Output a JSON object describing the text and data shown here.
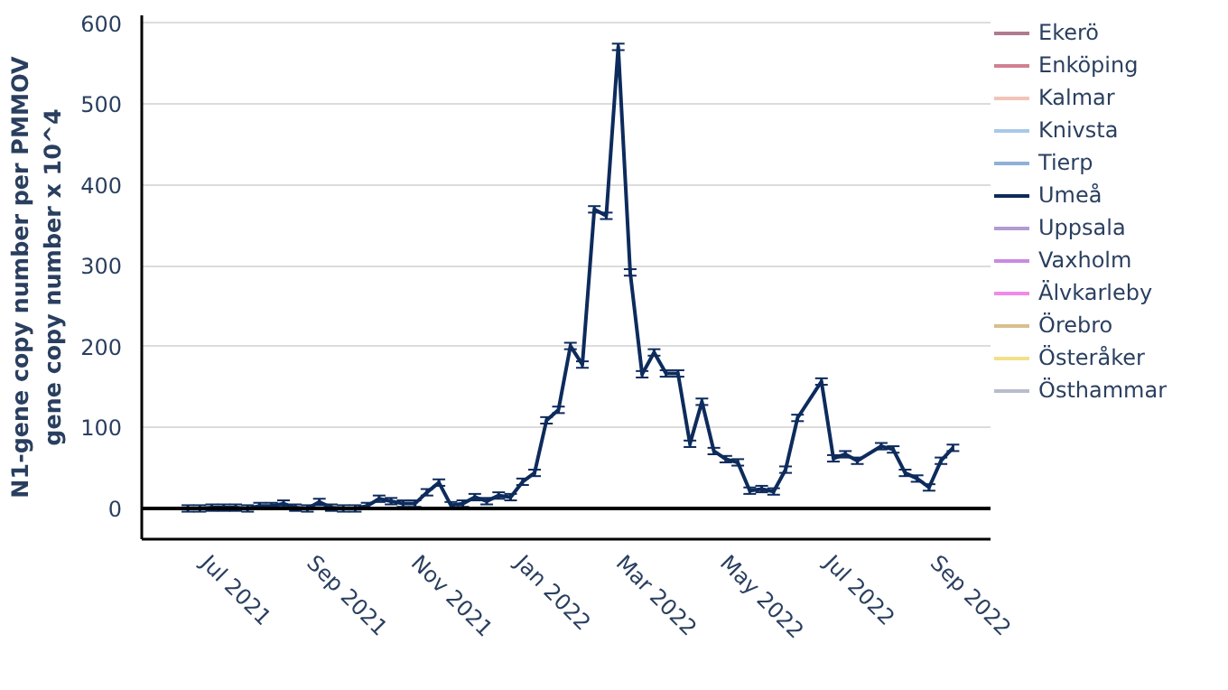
{
  "chart_data": {
    "type": "line",
    "ylabel": "N1-gene copy number per PMMOV\ngene copy number x 10^4",
    "x": [
      "2021-06-21",
      "2021-06-28",
      "2021-07-05",
      "2021-07-12",
      "2021-07-19",
      "2021-07-26",
      "2021-08-02",
      "2021-08-09",
      "2021-08-16",
      "2021-08-23",
      "2021-08-30",
      "2021-09-06",
      "2021-09-13",
      "2021-09-20",
      "2021-09-27",
      "2021-10-04",
      "2021-10-11",
      "2021-10-18",
      "2021-10-25",
      "2021-11-01",
      "2021-11-08",
      "2021-11-15",
      "2021-11-22",
      "2021-11-29",
      "2021-12-06",
      "2021-12-13",
      "2021-12-20",
      "2021-12-27",
      "2022-01-03",
      "2022-01-10",
      "2022-01-17",
      "2022-01-24",
      "2022-01-31",
      "2022-02-07",
      "2022-02-14",
      "2022-02-21",
      "2022-02-28",
      "2022-03-07",
      "2022-03-14",
      "2022-03-21",
      "2022-03-28",
      "2022-04-04",
      "2022-04-11",
      "2022-04-18",
      "2022-04-25",
      "2022-05-02",
      "2022-05-09",
      "2022-05-16",
      "2022-05-23",
      "2022-05-30",
      "2022-06-06",
      "2022-06-13",
      "2022-06-20",
      "2022-06-27",
      "2022-07-04",
      "2022-07-11",
      "2022-07-18",
      "2022-07-25",
      "2022-08-01",
      "2022-08-08",
      "2022-08-15",
      "2022-08-22",
      "2022-08-29",
      "2022-09-05",
      "2022-09-12"
    ],
    "series": [
      {
        "name": "Ekerö",
        "color": "#b07a8f",
        "values": [
          null,
          null,
          null,
          null,
          null,
          null,
          null,
          null,
          null,
          null,
          null,
          null,
          null,
          null,
          null,
          null,
          null,
          null,
          null,
          null,
          null,
          null,
          null,
          null,
          null,
          null,
          null,
          null,
          null,
          null,
          null,
          null,
          null,
          null,
          null,
          null,
          null,
          null,
          null,
          null,
          null,
          null,
          null,
          null,
          null,
          null,
          null,
          null,
          null,
          null,
          null,
          null,
          null,
          null,
          null,
          null,
          null,
          null,
          null,
          null,
          null,
          null,
          null,
          null,
          null
        ]
      },
      {
        "name": "Enköping",
        "color": "#d0808f",
        "values": [
          null,
          null,
          null,
          null,
          null,
          null,
          null,
          null,
          null,
          null,
          null,
          null,
          null,
          null,
          null,
          null,
          null,
          null,
          null,
          null,
          null,
          null,
          null,
          null,
          null,
          null,
          null,
          null,
          null,
          null,
          null,
          null,
          null,
          null,
          null,
          null,
          null,
          null,
          null,
          null,
          null,
          null,
          null,
          null,
          null,
          null,
          null,
          null,
          null,
          null,
          null,
          null,
          null,
          null,
          null,
          null,
          null,
          null,
          null,
          null,
          null,
          null,
          null,
          null,
          null
        ]
      },
      {
        "name": "Kalmar",
        "color": "#f2c4b8",
        "values": [
          null,
          null,
          null,
          null,
          null,
          null,
          null,
          null,
          null,
          null,
          null,
          null,
          null,
          null,
          null,
          null,
          null,
          null,
          null,
          null,
          null,
          null,
          null,
          null,
          null,
          null,
          null,
          null,
          null,
          null,
          null,
          null,
          null,
          null,
          null,
          null,
          null,
          null,
          null,
          null,
          null,
          null,
          null,
          null,
          null,
          null,
          null,
          null,
          null,
          null,
          null,
          null,
          null,
          null,
          null,
          null,
          null,
          null,
          null,
          null,
          null,
          null,
          null,
          null,
          null
        ]
      },
      {
        "name": "Knivsta",
        "color": "#a9c8e8",
        "values": [
          null,
          null,
          null,
          null,
          null,
          null,
          null,
          null,
          null,
          null,
          null,
          null,
          null,
          null,
          null,
          null,
          null,
          null,
          null,
          null,
          null,
          null,
          null,
          null,
          null,
          null,
          null,
          null,
          null,
          null,
          null,
          null,
          null,
          null,
          null,
          null,
          null,
          null,
          null,
          null,
          null,
          null,
          null,
          null,
          null,
          null,
          null,
          null,
          null,
          null,
          null,
          null,
          null,
          null,
          null,
          null,
          null,
          null,
          null,
          null,
          null,
          null,
          null,
          null,
          null
        ]
      },
      {
        "name": "Tierp",
        "color": "#8fb0d8",
        "values": [
          null,
          null,
          null,
          null,
          null,
          null,
          null,
          null,
          null,
          null,
          null,
          null,
          null,
          null,
          null,
          null,
          null,
          null,
          null,
          null,
          null,
          null,
          null,
          null,
          null,
          null,
          null,
          null,
          null,
          null,
          null,
          null,
          null,
          null,
          null,
          null,
          null,
          null,
          null,
          null,
          null,
          null,
          null,
          null,
          null,
          null,
          null,
          null,
          null,
          null,
          null,
          null,
          null,
          null,
          null,
          null,
          null,
          null,
          null,
          null,
          null,
          null,
          null,
          null,
          null
        ]
      },
      {
        "name": "Umeå",
        "color": "#0d2b5c",
        "values": [
          0,
          0,
          1,
          1,
          1,
          0,
          3,
          3,
          6,
          1,
          0,
          8,
          1,
          0,
          0,
          3,
          12,
          9,
          6,
          6,
          20,
          32,
          4,
          6,
          14,
          9,
          16,
          14,
          33,
          44,
          109,
          122,
          201,
          178,
          370,
          362,
          571,
          292,
          166,
          193,
          167,
          167,
          80,
          132,
          71,
          61,
          57,
          22,
          24,
          21,
          48,
          112,
          null,
          157,
          62,
          67,
          59,
          null,
          77,
          73,
          44,
          37,
          26,
          59,
          75
        ],
        "errors": [
          4,
          4,
          4,
          4,
          4,
          4,
          4,
          4,
          4,
          4,
          4,
          4,
          4,
          4,
          4,
          4,
          4,
          4,
          4,
          4,
          4,
          4,
          4,
          4,
          4,
          4,
          4,
          4,
          4,
          4,
          4,
          4,
          4,
          4,
          4,
          4,
          4,
          4,
          4,
          4,
          4,
          4,
          4,
          4,
          4,
          4,
          4,
          4,
          4,
          4,
          4,
          4,
          null,
          4,
          4,
          4,
          4,
          null,
          4,
          4,
          4,
          4,
          4,
          4,
          4
        ]
      },
      {
        "name": "Uppsala",
        "color": "#b29ad4",
        "values": [
          null,
          null,
          null,
          null,
          null,
          null,
          null,
          null,
          null,
          null,
          null,
          null,
          null,
          null,
          null,
          null,
          null,
          null,
          null,
          null,
          null,
          null,
          null,
          null,
          null,
          null,
          null,
          null,
          null,
          null,
          null,
          null,
          null,
          null,
          null,
          null,
          null,
          null,
          null,
          null,
          null,
          null,
          null,
          null,
          null,
          null,
          null,
          null,
          null,
          null,
          null,
          null,
          null,
          null,
          null,
          null,
          null,
          null,
          null,
          null,
          null,
          null,
          null,
          null,
          null
        ]
      },
      {
        "name": "Vaxholm",
        "color": "#c98ae0",
        "values": [
          null,
          null,
          null,
          null,
          null,
          null,
          null,
          null,
          null,
          null,
          null,
          null,
          null,
          null,
          null,
          null,
          null,
          null,
          null,
          null,
          null,
          null,
          null,
          null,
          null,
          null,
          null,
          null,
          null,
          null,
          null,
          null,
          null,
          null,
          null,
          null,
          null,
          null,
          null,
          null,
          null,
          null,
          null,
          null,
          null,
          null,
          null,
          null,
          null,
          null,
          null,
          null,
          null,
          null,
          null,
          null,
          null,
          null,
          null,
          null,
          null,
          null,
          null,
          null,
          null
        ]
      },
      {
        "name": "Älvkarleby",
        "color": "#f08ae8",
        "values": [
          null,
          null,
          null,
          null,
          null,
          null,
          null,
          null,
          null,
          null,
          null,
          null,
          null,
          null,
          null,
          null,
          null,
          null,
          null,
          null,
          null,
          null,
          null,
          null,
          null,
          null,
          null,
          null,
          null,
          null,
          null,
          null,
          null,
          null,
          null,
          null,
          null,
          null,
          null,
          null,
          null,
          null,
          null,
          null,
          null,
          null,
          null,
          null,
          null,
          null,
          null,
          null,
          null,
          null,
          null,
          null,
          null,
          null,
          null,
          null,
          null,
          null,
          null,
          null,
          null
        ]
      },
      {
        "name": "Örebro",
        "color": "#d8bf8c",
        "values": [
          null,
          null,
          null,
          null,
          null,
          null,
          null,
          null,
          null,
          null,
          null,
          null,
          null,
          null,
          null,
          null,
          null,
          null,
          null,
          null,
          null,
          null,
          null,
          null,
          null,
          null,
          null,
          null,
          null,
          null,
          null,
          null,
          null,
          null,
          null,
          null,
          null,
          null,
          null,
          null,
          null,
          null,
          null,
          null,
          null,
          null,
          null,
          null,
          null,
          null,
          null,
          null,
          null,
          null,
          null,
          null,
          null,
          null,
          null,
          null,
          null,
          null,
          null,
          null,
          null
        ]
      },
      {
        "name": "Österåker",
        "color": "#f3e08a",
        "values": [
          null,
          null,
          null,
          null,
          null,
          null,
          null,
          null,
          null,
          null,
          null,
          null,
          null,
          null,
          null,
          null,
          null,
          null,
          null,
          null,
          null,
          null,
          null,
          null,
          null,
          null,
          null,
          null,
          null,
          null,
          null,
          null,
          null,
          null,
          null,
          null,
          null,
          null,
          null,
          null,
          null,
          null,
          null,
          null,
          null,
          null,
          null,
          null,
          null,
          null,
          null,
          null,
          null,
          null,
          null,
          null,
          null,
          null,
          null,
          null,
          null,
          null,
          null,
          null,
          null
        ]
      },
      {
        "name": "Östhammar",
        "color": "#b8bccc",
        "values": [
          null,
          null,
          null,
          null,
          null,
          null,
          null,
          null,
          null,
          null,
          null,
          null,
          null,
          null,
          null,
          null,
          null,
          null,
          null,
          null,
          null,
          null,
          null,
          null,
          null,
          null,
          null,
          null,
          null,
          null,
          null,
          null,
          null,
          null,
          null,
          null,
          null,
          null,
          null,
          null,
          null,
          null,
          null,
          null,
          null,
          null,
          null,
          null,
          null,
          null,
          null,
          null,
          null,
          null,
          null,
          null,
          null,
          null,
          null,
          null,
          null,
          null,
          null,
          null,
          null
        ]
      }
    ],
    "xlim": [
      "2021-05-25",
      "2022-10-04"
    ],
    "xticks": [
      {
        "value": "2021-07-01",
        "label": "Jul 2021"
      },
      {
        "value": "2021-09-01",
        "label": "Sep 2021"
      },
      {
        "value": "2021-11-01",
        "label": "Nov 2021"
      },
      {
        "value": "2022-01-01",
        "label": "Jan 2022"
      },
      {
        "value": "2022-03-01",
        "label": "Mar 2022"
      },
      {
        "value": "2022-05-01",
        "label": "May 2022"
      },
      {
        "value": "2022-07-01",
        "label": "Jul 2022"
      },
      {
        "value": "2022-09-01",
        "label": "Sep 2022"
      }
    ],
    "ylim": [
      -38,
      610
    ],
    "yticks": [
      0,
      100,
      200,
      300,
      400,
      500,
      600
    ],
    "ref_lines": [
      {
        "axis": "y",
        "value": 0,
        "color": "#000000"
      }
    ],
    "grid": "y",
    "legend": "right",
    "line_style": "solid"
  }
}
